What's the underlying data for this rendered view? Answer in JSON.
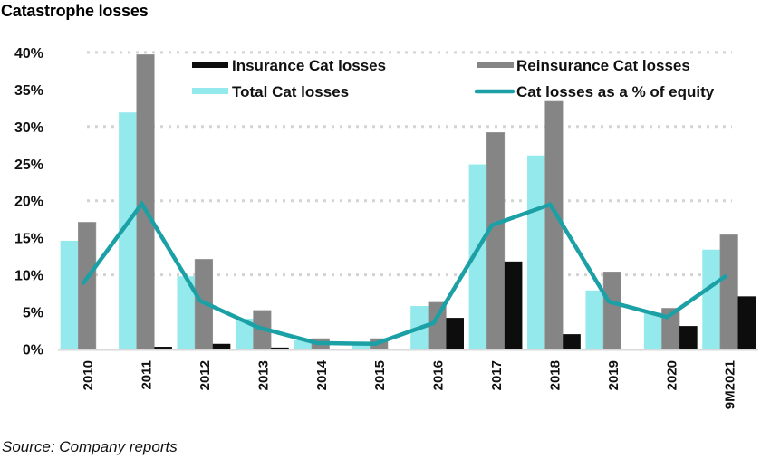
{
  "title": "Catastrophe losses",
  "source": "Source: Company reports",
  "colors": {
    "total": "#93E9EB",
    "reinsurance": "#858585",
    "insurance": "#0D0D0D",
    "line": "#1BA0A5",
    "grid": "#D4D4D4",
    "axis": "#D9D9D9"
  },
  "chart_data": {
    "type": "bar",
    "title": "Catastrophe losses",
    "xlabel": "",
    "ylabel": "",
    "ylim": [
      0,
      40
    ],
    "y_ticks": [
      "0%",
      "5%",
      "10%",
      "15%",
      "20%",
      "25%",
      "30%",
      "35%",
      "40%"
    ],
    "y_tick_values": [
      0,
      5,
      10,
      15,
      20,
      25,
      30,
      35,
      40
    ],
    "gridlines_at": [
      10,
      20,
      30,
      40
    ],
    "grid": true,
    "legend_position": "top-right",
    "categories": [
      "2010",
      "2011",
      "2012",
      "2013",
      "2014",
      "2015",
      "2016",
      "2017",
      "2018",
      "2019",
      "2020",
      "9M2021"
    ],
    "series": [
      {
        "name": "Total Cat losses",
        "kind": "bar",
        "color_key": "total",
        "values": [
          14.6,
          31.9,
          9.8,
          4.1,
          1.2,
          0.6,
          5.8,
          24.9,
          26.1,
          7.9,
          4.9,
          13.4
        ]
      },
      {
        "name": "Reinsurance Cat losses",
        "kind": "bar",
        "color_key": "reinsurance",
        "values": [
          17.1,
          39.7,
          12.1,
          5.2,
          1.4,
          1.4,
          6.3,
          29.2,
          33.4,
          10.4,
          5.5,
          15.4
        ]
      },
      {
        "name": "Insurance Cat losses",
        "kind": "bar",
        "color_key": "insurance",
        "values": [
          0.0,
          0.3,
          0.7,
          0.2,
          0.0,
          0.0,
          4.2,
          11.8,
          2.0,
          0.0,
          3.1,
          7.1
        ]
      },
      {
        "name": "Cat losses as a % of equity",
        "kind": "line",
        "color_key": "line",
        "values": [
          8.9,
          19.6,
          6.5,
          2.9,
          0.8,
          0.7,
          3.5,
          16.7,
          19.5,
          6.4,
          4.3,
          9.8
        ]
      }
    ],
    "legend": [
      {
        "label": "Insurance Cat losses",
        "color_key": "insurance",
        "kind": "bar"
      },
      {
        "label": "Reinsurance Cat losses",
        "color_key": "reinsurance",
        "kind": "bar"
      },
      {
        "label": "Total Cat losses",
        "color_key": "total",
        "kind": "bar"
      },
      {
        "label": "Cat losses as a % of equity",
        "color_key": "line",
        "kind": "line"
      }
    ]
  }
}
